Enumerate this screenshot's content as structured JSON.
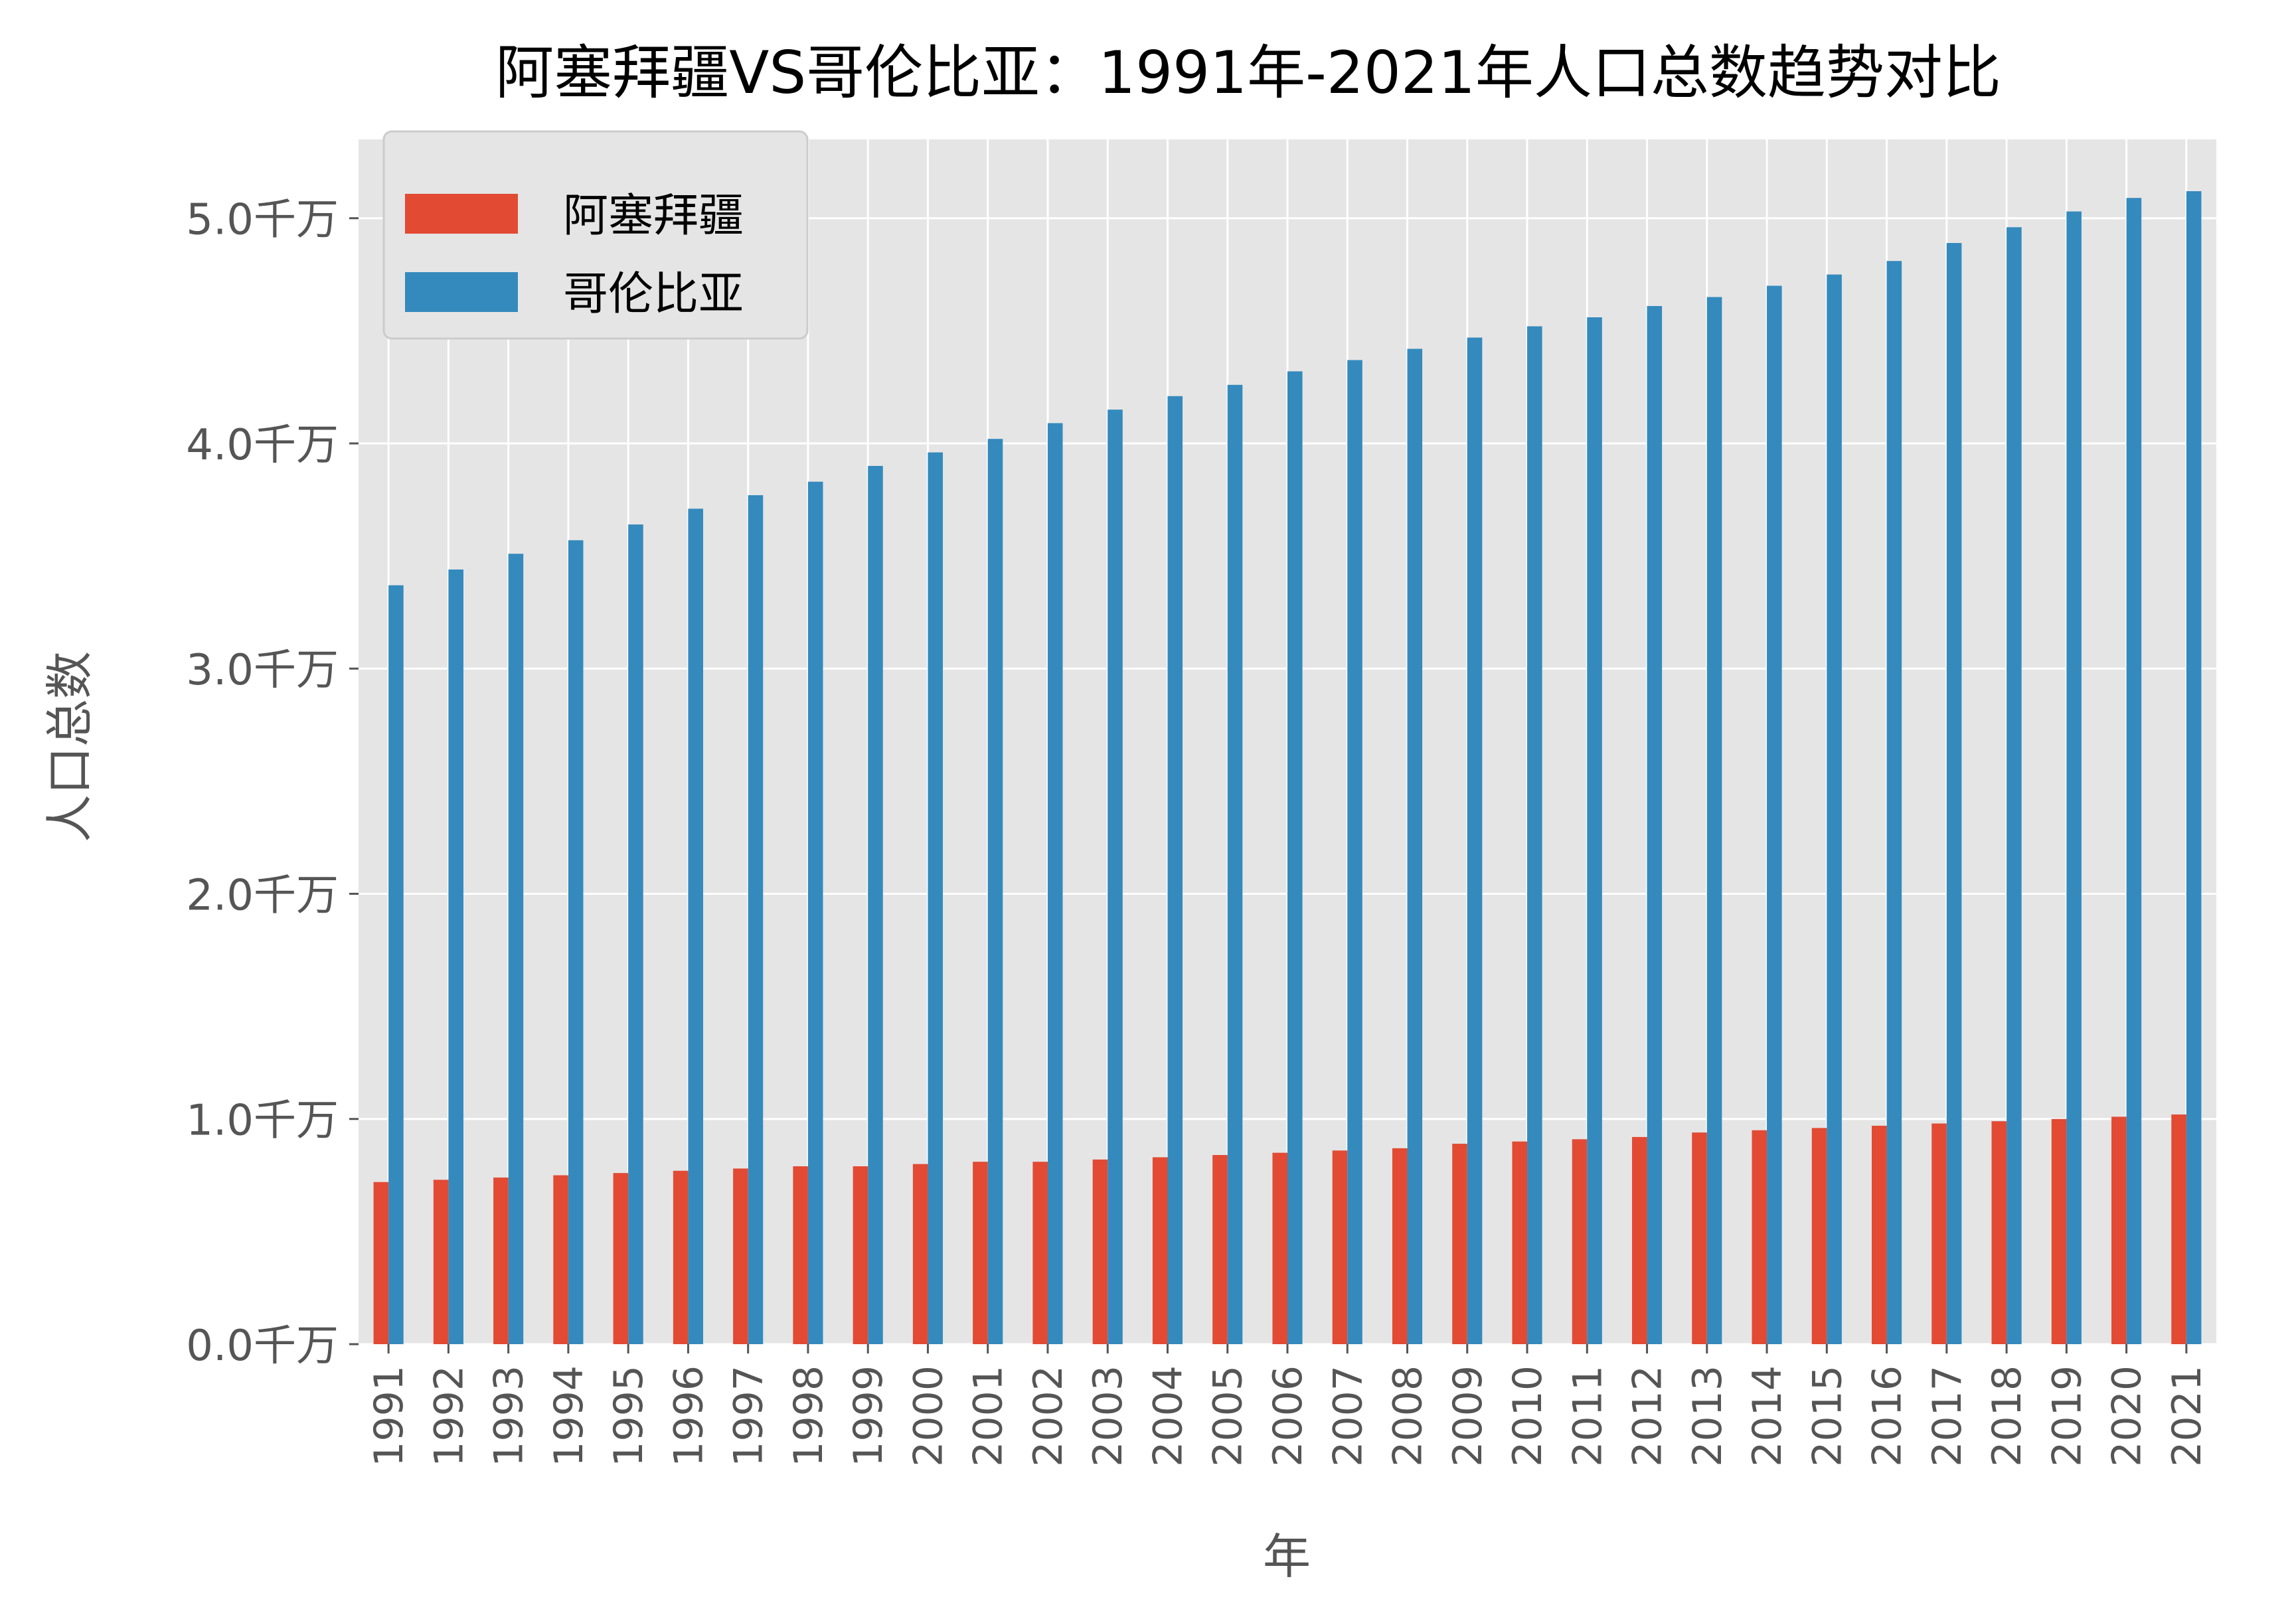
{
  "chart_data": {
    "type": "bar",
    "title": "阿塞拜疆VS哥伦比亚：1991年-2021年人口总数趋势对比",
    "xlabel": "年",
    "ylabel": "人口总数",
    "ylim": [
      0,
      5.35
    ],
    "yticks": [
      {
        "value": 0,
        "label": "0.0千万"
      },
      {
        "value": 1,
        "label": "1.0千万"
      },
      {
        "value": 2,
        "label": "2.0千万"
      },
      {
        "value": 3,
        "label": "3.0千万"
      },
      {
        "value": 4,
        "label": "4.0千万"
      },
      {
        "value": 5,
        "label": "5.0千万"
      }
    ],
    "y_unit": "千万",
    "grid": true,
    "legend_position": "top-left",
    "background": "#e5e5e5",
    "categories": [
      "1991",
      "1992",
      "1993",
      "1994",
      "1995",
      "1996",
      "1997",
      "1998",
      "1999",
      "2000",
      "2001",
      "2002",
      "2003",
      "2004",
      "2005",
      "2006",
      "2007",
      "2008",
      "2009",
      "2010",
      "2011",
      "2012",
      "2013",
      "2014",
      "2015",
      "2016",
      "2017",
      "2018",
      "2019",
      "2020",
      "2021"
    ],
    "series": [
      {
        "name": "阿塞拜疆",
        "color": "#e24a33",
        "values": [
          0.72,
          0.73,
          0.74,
          0.75,
          0.76,
          0.77,
          0.78,
          0.79,
          0.79,
          0.8,
          0.81,
          0.81,
          0.82,
          0.83,
          0.84,
          0.85,
          0.86,
          0.87,
          0.89,
          0.9,
          0.91,
          0.92,
          0.94,
          0.95,
          0.96,
          0.97,
          0.98,
          0.99,
          1.0,
          1.01,
          1.02
        ]
      },
      {
        "name": "哥伦比亚",
        "color": "#348abd",
        "values": [
          3.37,
          3.44,
          3.51,
          3.57,
          3.64,
          3.71,
          3.77,
          3.83,
          3.9,
          3.96,
          4.02,
          4.09,
          4.15,
          4.21,
          4.26,
          4.32,
          4.37,
          4.42,
          4.47,
          4.52,
          4.56,
          4.61,
          4.65,
          4.7,
          4.75,
          4.81,
          4.89,
          4.96,
          5.03,
          5.09,
          5.12
        ]
      }
    ]
  }
}
